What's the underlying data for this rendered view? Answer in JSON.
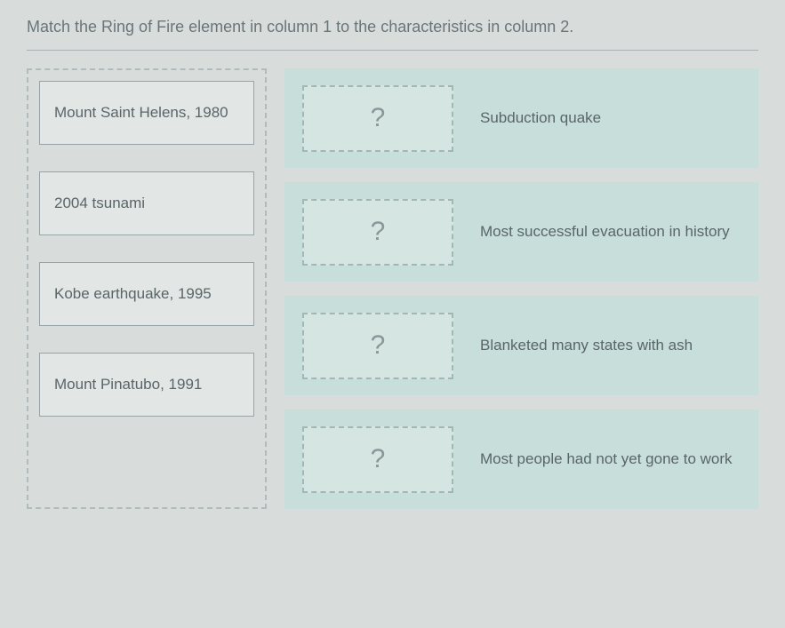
{
  "instruction": "Match the Ring of Fire element in column 1 to the characteristics in column 2.",
  "dragItems": [
    {
      "label": "Mount Saint Helens, 1980"
    },
    {
      "label": "2004 tsunami"
    },
    {
      "label": "Kobe earthquake, 1995"
    },
    {
      "label": "Mount Pinatubo, 1991"
    }
  ],
  "dropRows": [
    {
      "placeholder": "?",
      "characteristic": "Subduction quake"
    },
    {
      "placeholder": "?",
      "characteristic": "Most successful evacuation in history"
    },
    {
      "placeholder": "?",
      "characteristic": "Blanketed many states with ash"
    },
    {
      "placeholder": "?",
      "characteristic": "Most people had not yet gone to work"
    }
  ],
  "colors": {
    "background": "#d8dddc",
    "dropRowBg": "#c8dedb",
    "dropZoneBg": "#d5e5e2",
    "borderDashed": "#b0bbbd",
    "text": "#5a6568"
  }
}
